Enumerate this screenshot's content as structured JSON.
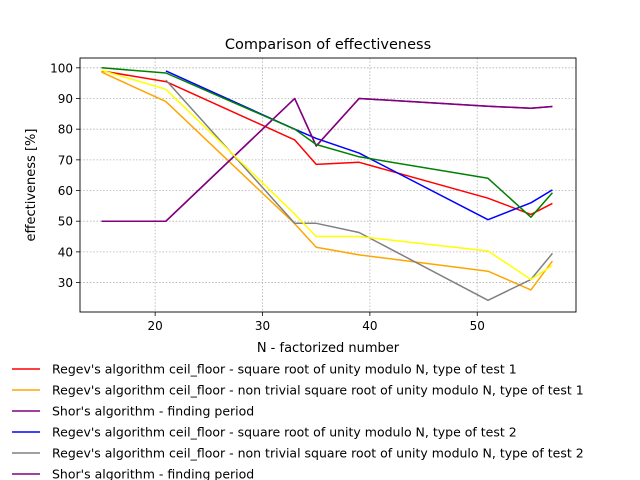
{
  "chart_data": {
    "type": "line",
    "title": "Comparison of effectiveness",
    "xlabel": "N - factorized number",
    "ylabel": "effectiveness [%]",
    "xlim": [
      13,
      59.2
    ],
    "ylim": [
      20.4,
      103.2
    ],
    "x_ticks": [
      20,
      30,
      40,
      50
    ],
    "y_ticks": [
      30,
      40,
      50,
      60,
      70,
      80,
      90,
      100
    ],
    "grid": true,
    "legend_position": "below plot",
    "series": [
      {
        "name": "Regev's algorithm ceil_floor - square root of unity modulo N, type of test 1",
        "color": "#ff0000",
        "in_legend": true,
        "x": [
          15,
          21,
          33,
          35,
          39,
          51,
          55,
          57
        ],
        "y": [
          99,
          95.5,
          76.5,
          68.5,
          69.2,
          57.5,
          52.2,
          55.8
        ]
      },
      {
        "name": "Regev's algorithm ceil_floor - non trivial square root of unity modulo N, type of test 1",
        "color": "#ffa500",
        "in_legend": true,
        "x": [
          15,
          21,
          33,
          35,
          39,
          51,
          55,
          57
        ],
        "y": [
          98.6,
          89,
          49.2,
          41.5,
          39,
          33.7,
          27.6,
          37
        ]
      },
      {
        "name": "Shor's algorithm - finding period",
        "color": "#800080",
        "in_legend": true,
        "x": [
          15,
          21,
          33,
          35,
          39,
          51,
          55,
          57
        ],
        "y": [
          50,
          50,
          90,
          74.5,
          90,
          87.5,
          86.8,
          87.4
        ]
      },
      {
        "name": "Regev's algorithm ceil_floor - square root of unity modulo N, type of test 2",
        "color": "#0000ff",
        "in_legend": true,
        "x": [
          21,
          33,
          35,
          39,
          51,
          55,
          57
        ],
        "y": [
          99,
          80,
          77,
          72.2,
          50.5,
          56,
          60.2
        ]
      },
      {
        "name": "Regev's algorithm ceil_floor - non trivial square root of unity modulo N, type of test 2",
        "color": "#808080",
        "in_legend": true,
        "x": [
          21,
          33,
          35,
          39,
          51,
          55,
          57
        ],
        "y": [
          96,
          49.3,
          49.3,
          46.3,
          24.2,
          31,
          39.5
        ]
      },
      {
        "name": "Shor's algorithm - finding period",
        "color": "#800080",
        "in_legend": true,
        "x": [
          15,
          21,
          33,
          35,
          39,
          51,
          55,
          57
        ],
        "y": [
          50,
          50,
          90,
          74.5,
          90,
          87.5,
          86.8,
          87.4
        ]
      },
      {
        "name": "",
        "color": "#ffff00",
        "in_legend": false,
        "x": [
          15,
          21,
          33,
          35,
          39,
          51,
          55,
          57
        ],
        "y": [
          99.2,
          93,
          52.3,
          45,
          45,
          40.3,
          31,
          35.6
        ]
      },
      {
        "name": "",
        "color": "#008000",
        "in_legend": false,
        "x": [
          15,
          21,
          33,
          35,
          39,
          51,
          55,
          57
        ],
        "y": [
          100,
          98.3,
          80,
          75,
          71,
          64,
          51.3,
          59.3
        ]
      }
    ]
  }
}
